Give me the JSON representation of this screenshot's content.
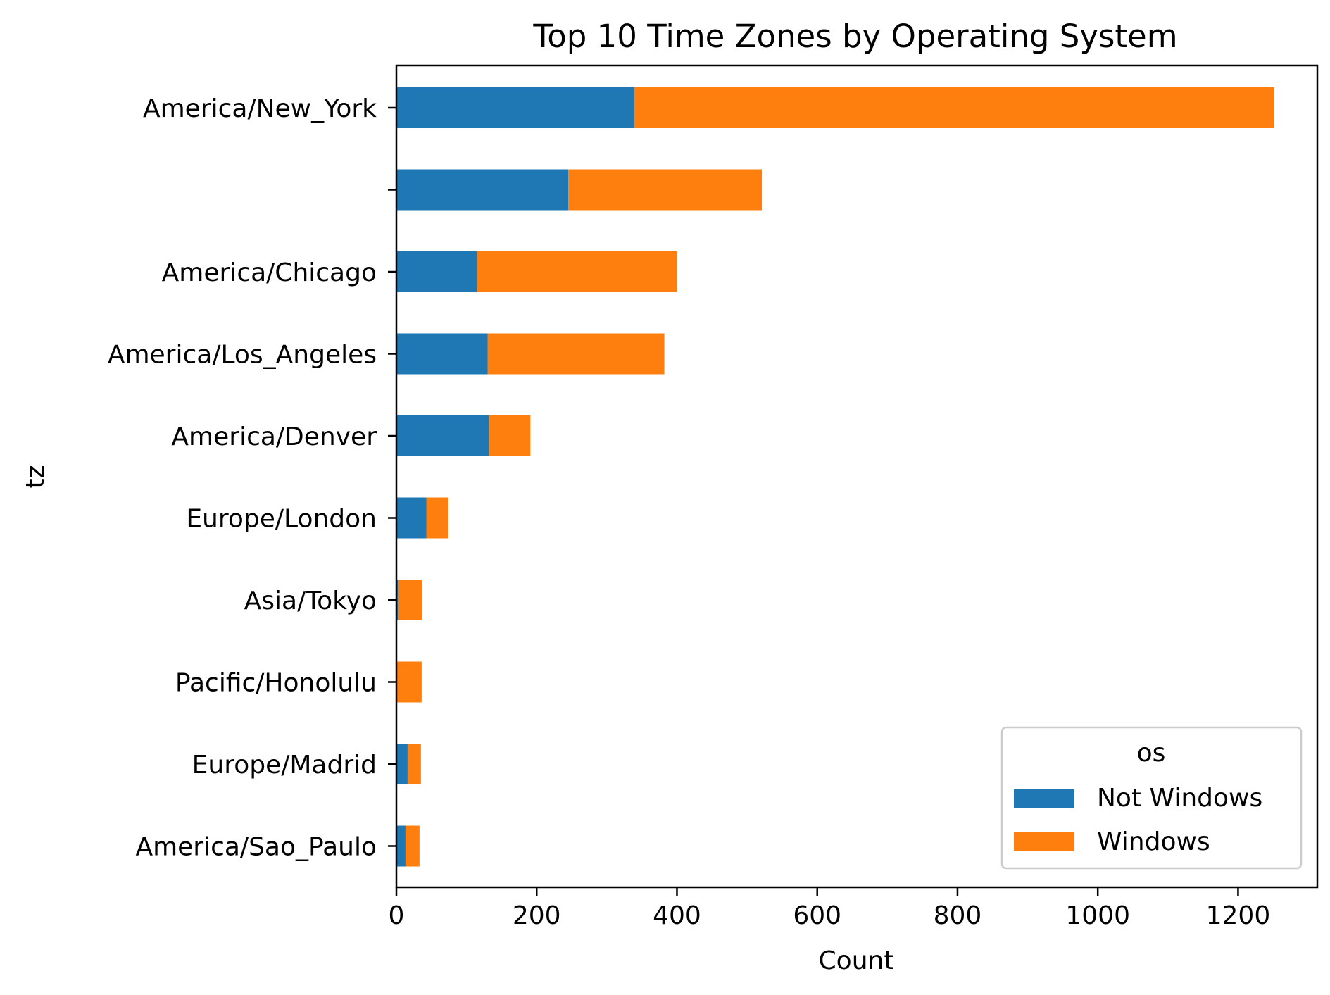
{
  "chart_data": {
    "type": "bar",
    "orientation": "horizontal",
    "stacked": true,
    "title": "Top 10 Time Zones by Operating System",
    "xlabel": "Count",
    "ylabel": "tz",
    "xlim": [
      0,
      1313
    ],
    "xticks": [
      0,
      200,
      400,
      600,
      800,
      1000,
      1200
    ],
    "grid": false,
    "categories": [
      "America/New_York",
      "",
      "America/Chicago",
      "America/Los_Angeles",
      "America/Denver",
      "Europe/London",
      "Asia/Tokyo",
      "Pacific/Honolulu",
      "Europe/Madrid",
      "America/Sao_Paulo"
    ],
    "series": [
      {
        "name": "Not Windows",
        "color": "#1f77b4",
        "values": [
          339,
          245,
          115,
          130,
          132,
          43,
          2,
          0,
          16,
          13
        ]
      },
      {
        "name": "Windows",
        "color": "#ff7f0e",
        "values": [
          912,
          276,
          285,
          252,
          59,
          31,
          35,
          36,
          19,
          20
        ]
      }
    ],
    "legend": {
      "title": "os",
      "placement": "lower right"
    }
  }
}
